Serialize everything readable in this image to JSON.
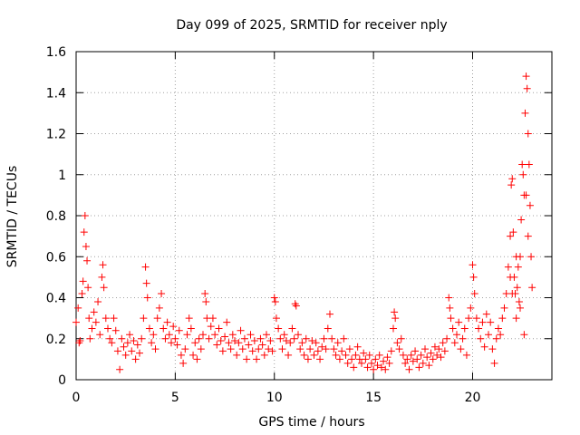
{
  "chart_data": {
    "type": "scatter",
    "title": "Day 099 of 2025, SRMTID for receiver nply",
    "xlabel": "GPS time / hours",
    "ylabel": "SRMTID / TECUs",
    "xlim": [
      0,
      24
    ],
    "ylim": [
      0,
      1.6
    ],
    "xticks": [
      0,
      5,
      10,
      15,
      20
    ],
    "xtick_labels": [
      "0",
      "5",
      "10",
      "15",
      "20"
    ],
    "yticks": [
      0,
      0.2,
      0.4,
      0.6,
      0.8,
      1,
      1.2,
      1.4,
      1.6
    ],
    "ytick_labels": [
      "0",
      "0.2",
      "0.4",
      "0.6",
      "0.8",
      "1",
      "1.2",
      "1.4",
      "1.6"
    ],
    "grid": true,
    "marker": "plus",
    "marker_color": "#ff0000",
    "series": [
      {
        "name": "SRMTID",
        "points": [
          [
            0.0,
            0.28
          ],
          [
            0.1,
            0.35
          ],
          [
            0.15,
            0.18
          ],
          [
            0.2,
            0.19
          ],
          [
            0.3,
            0.42
          ],
          [
            0.35,
            0.48
          ],
          [
            0.4,
            0.72
          ],
          [
            0.45,
            0.8
          ],
          [
            0.5,
            0.65
          ],
          [
            0.55,
            0.58
          ],
          [
            0.6,
            0.45
          ],
          [
            0.65,
            0.3
          ],
          [
            0.7,
            0.2
          ],
          [
            0.8,
            0.25
          ],
          [
            0.9,
            0.33
          ],
          [
            1.0,
            0.28
          ],
          [
            1.1,
            0.38
          ],
          [
            1.2,
            0.22
          ],
          [
            1.3,
            0.5
          ],
          [
            1.35,
            0.56
          ],
          [
            1.4,
            0.45
          ],
          [
            1.5,
            0.3
          ],
          [
            1.6,
            0.25
          ],
          [
            1.7,
            0.2
          ],
          [
            1.8,
            0.18
          ],
          [
            1.9,
            0.3
          ],
          [
            2.0,
            0.24
          ],
          [
            2.1,
            0.14
          ],
          [
            2.2,
            0.05
          ],
          [
            2.3,
            0.2
          ],
          [
            2.4,
            0.16
          ],
          [
            2.5,
            0.12
          ],
          [
            2.6,
            0.18
          ],
          [
            2.7,
            0.22
          ],
          [
            2.8,
            0.14
          ],
          [
            2.9,
            0.19
          ],
          [
            3.0,
            0.1
          ],
          [
            3.1,
            0.17
          ],
          [
            3.2,
            0.13
          ],
          [
            3.3,
            0.2
          ],
          [
            3.4,
            0.3
          ],
          [
            3.5,
            0.55
          ],
          [
            3.55,
            0.47
          ],
          [
            3.6,
            0.4
          ],
          [
            3.7,
            0.25
          ],
          [
            3.8,
            0.18
          ],
          [
            3.9,
            0.22
          ],
          [
            4.0,
            0.15
          ],
          [
            4.1,
            0.3
          ],
          [
            4.2,
            0.35
          ],
          [
            4.3,
            0.42
          ],
          [
            4.4,
            0.25
          ],
          [
            4.5,
            0.2
          ],
          [
            4.6,
            0.28
          ],
          [
            4.7,
            0.22
          ],
          [
            4.8,
            0.18
          ],
          [
            4.9,
            0.26
          ],
          [
            5.0,
            0.2
          ],
          [
            5.1,
            0.17
          ],
          [
            5.2,
            0.24
          ],
          [
            5.3,
            0.12
          ],
          [
            5.4,
            0.08
          ],
          [
            5.5,
            0.15
          ],
          [
            5.6,
            0.22
          ],
          [
            5.7,
            0.3
          ],
          [
            5.8,
            0.25
          ],
          [
            5.9,
            0.12
          ],
          [
            6.0,
            0.18
          ],
          [
            6.1,
            0.1
          ],
          [
            6.2,
            0.2
          ],
          [
            6.3,
            0.15
          ],
          [
            6.4,
            0.22
          ],
          [
            6.5,
            0.42
          ],
          [
            6.55,
            0.38
          ],
          [
            6.6,
            0.3
          ],
          [
            6.7,
            0.2
          ],
          [
            6.8,
            0.26
          ],
          [
            6.9,
            0.3
          ],
          [
            7.0,
            0.22
          ],
          [
            7.1,
            0.17
          ],
          [
            7.2,
            0.25
          ],
          [
            7.3,
            0.19
          ],
          [
            7.4,
            0.14
          ],
          [
            7.5,
            0.21
          ],
          [
            7.6,
            0.28
          ],
          [
            7.7,
            0.18
          ],
          [
            7.8,
            0.15
          ],
          [
            7.9,
            0.22
          ],
          [
            8.0,
            0.19
          ],
          [
            8.1,
            0.12
          ],
          [
            8.2,
            0.18
          ],
          [
            8.3,
            0.24
          ],
          [
            8.4,
            0.15
          ],
          [
            8.5,
            0.2
          ],
          [
            8.6,
            0.1
          ],
          [
            8.7,
            0.17
          ],
          [
            8.8,
            0.22
          ],
          [
            8.9,
            0.14
          ],
          [
            9.0,
            0.19
          ],
          [
            9.1,
            0.1
          ],
          [
            9.2,
            0.15
          ],
          [
            9.3,
            0.2
          ],
          [
            9.4,
            0.17
          ],
          [
            9.5,
            0.12
          ],
          [
            9.6,
            0.22
          ],
          [
            9.7,
            0.15
          ],
          [
            9.8,
            0.19
          ],
          [
            9.9,
            0.14
          ],
          [
            10.0,
            0.4
          ],
          [
            10.05,
            0.38
          ],
          [
            10.1,
            0.3
          ],
          [
            10.2,
            0.25
          ],
          [
            10.3,
            0.2
          ],
          [
            10.4,
            0.15
          ],
          [
            10.5,
            0.22
          ],
          [
            10.6,
            0.19
          ],
          [
            10.7,
            0.12
          ],
          [
            10.8,
            0.18
          ],
          [
            10.9,
            0.25
          ],
          [
            11.0,
            0.2
          ],
          [
            11.05,
            0.37
          ],
          [
            11.1,
            0.36
          ],
          [
            11.2,
            0.22
          ],
          [
            11.3,
            0.15
          ],
          [
            11.4,
            0.18
          ],
          [
            11.5,
            0.12
          ],
          [
            11.6,
            0.2
          ],
          [
            11.7,
            0.1
          ],
          [
            11.8,
            0.15
          ],
          [
            11.9,
            0.19
          ],
          [
            12.0,
            0.12
          ],
          [
            12.1,
            0.18
          ],
          [
            12.2,
            0.14
          ],
          [
            12.3,
            0.1
          ],
          [
            12.4,
            0.16
          ],
          [
            12.5,
            0.2
          ],
          [
            12.6,
            0.15
          ],
          [
            12.7,
            0.25
          ],
          [
            12.8,
            0.32
          ],
          [
            12.9,
            0.2
          ],
          [
            13.0,
            0.15
          ],
          [
            13.1,
            0.12
          ],
          [
            13.2,
            0.18
          ],
          [
            13.3,
            0.1
          ],
          [
            13.4,
            0.14
          ],
          [
            13.5,
            0.2
          ],
          [
            13.6,
            0.12
          ],
          [
            13.7,
            0.08
          ],
          [
            13.8,
            0.15
          ],
          [
            13.9,
            0.1
          ],
          [
            14.0,
            0.06
          ],
          [
            14.1,
            0.12
          ],
          [
            14.2,
            0.16
          ],
          [
            14.3,
            0.1
          ],
          [
            14.4,
            0.08
          ],
          [
            14.5,
            0.13
          ],
          [
            14.6,
            0.1
          ],
          [
            14.7,
            0.06
          ],
          [
            14.8,
            0.12
          ],
          [
            14.9,
            0.08
          ],
          [
            15.0,
            0.05
          ],
          [
            15.1,
            0.1
          ],
          [
            15.2,
            0.07
          ],
          [
            15.3,
            0.12
          ],
          [
            15.4,
            0.06
          ],
          [
            15.5,
            0.09
          ],
          [
            15.6,
            0.05
          ],
          [
            15.7,
            0.11
          ],
          [
            15.8,
            0.08
          ],
          [
            15.9,
            0.14
          ],
          [
            16.0,
            0.25
          ],
          [
            16.05,
            0.33
          ],
          [
            16.1,
            0.3
          ],
          [
            16.2,
            0.18
          ],
          [
            16.3,
            0.15
          ],
          [
            16.4,
            0.2
          ],
          [
            16.5,
            0.12
          ],
          [
            16.6,
            0.08
          ],
          [
            16.7,
            0.1
          ],
          [
            16.8,
            0.05
          ],
          [
            16.9,
            0.12
          ],
          [
            17.0,
            0.09
          ],
          [
            17.1,
            0.14
          ],
          [
            17.2,
            0.1
          ],
          [
            17.3,
            0.06
          ],
          [
            17.4,
            0.12
          ],
          [
            17.5,
            0.08
          ],
          [
            17.6,
            0.15
          ],
          [
            17.7,
            0.11
          ],
          [
            17.8,
            0.07
          ],
          [
            17.9,
            0.13
          ],
          [
            18.0,
            0.1
          ],
          [
            18.1,
            0.16
          ],
          [
            18.2,
            0.12
          ],
          [
            18.3,
            0.15
          ],
          [
            18.4,
            0.11
          ],
          [
            18.5,
            0.18
          ],
          [
            18.6,
            0.14
          ],
          [
            18.7,
            0.2
          ],
          [
            18.8,
            0.4
          ],
          [
            18.85,
            0.35
          ],
          [
            18.9,
            0.3
          ],
          [
            19.0,
            0.25
          ],
          [
            19.1,
            0.18
          ],
          [
            19.2,
            0.22
          ],
          [
            19.3,
            0.28
          ],
          [
            19.4,
            0.15
          ],
          [
            19.5,
            0.2
          ],
          [
            19.6,
            0.25
          ],
          [
            19.7,
            0.12
          ],
          [
            19.8,
            0.3
          ],
          [
            19.9,
            0.35
          ],
          [
            20.0,
            0.56
          ],
          [
            20.05,
            0.5
          ],
          [
            20.1,
            0.42
          ],
          [
            20.2,
            0.3
          ],
          [
            20.3,
            0.25
          ],
          [
            20.4,
            0.2
          ],
          [
            20.5,
            0.28
          ],
          [
            20.6,
            0.16
          ],
          [
            20.7,
            0.32
          ],
          [
            20.8,
            0.22
          ],
          [
            20.9,
            0.28
          ],
          [
            21.0,
            0.15
          ],
          [
            21.1,
            0.08
          ],
          [
            21.2,
            0.2
          ],
          [
            21.3,
            0.25
          ],
          [
            21.4,
            0.22
          ],
          [
            21.5,
            0.3
          ],
          [
            21.6,
            0.35
          ],
          [
            21.7,
            0.42
          ],
          [
            21.8,
            0.55
          ],
          [
            21.9,
            0.7
          ],
          [
            21.95,
            0.95
          ],
          [
            22.0,
            0.98
          ],
          [
            22.05,
            0.72
          ],
          [
            22.1,
            0.5
          ],
          [
            22.15,
            0.42
          ],
          [
            22.2,
            0.3
          ],
          [
            22.25,
            0.45
          ],
          [
            22.3,
            0.55
          ],
          [
            22.35,
            0.38
          ],
          [
            22.4,
            0.6
          ],
          [
            22.45,
            0.78
          ],
          [
            22.5,
            1.05
          ],
          [
            22.55,
            1.0
          ],
          [
            22.6,
            0.9
          ],
          [
            22.65,
            1.3
          ],
          [
            22.7,
            1.48
          ],
          [
            22.75,
            1.42
          ],
          [
            22.8,
            1.2
          ],
          [
            22.85,
            1.05
          ],
          [
            22.9,
            0.85
          ],
          [
            22.95,
            0.6
          ],
          [
            23.0,
            0.45
          ],
          [
            22.6,
            0.22
          ],
          [
            22.4,
            0.35
          ],
          [
            22.2,
            0.6
          ],
          [
            22.0,
            0.42
          ],
          [
            21.9,
            0.5
          ],
          [
            22.7,
            0.9
          ],
          [
            22.8,
            0.7
          ]
        ]
      }
    ]
  }
}
